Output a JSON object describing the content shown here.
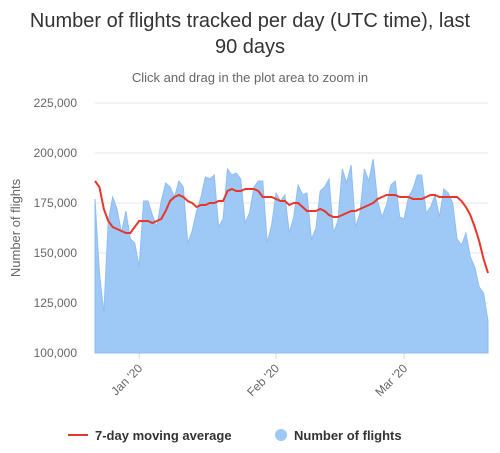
{
  "chart_data": {
    "type": "area",
    "title": "Number of flights tracked per day (UTC time), last 90 days",
    "subtitle": "Click and drag in the plot area to zoom in",
    "ylabel": "Number of flights",
    "xlabel": "",
    "ylim": [
      100000,
      225000
    ],
    "yticks": [
      "100,000",
      "125,000",
      "150,000",
      "175,000",
      "200,000",
      "225,000"
    ],
    "xticks": [
      {
        "label": "Jan '20",
        "date": "2020-01-01"
      },
      {
        "label": "Feb '20",
        "date": "2020-02-01"
      },
      {
        "label": "Mar '20",
        "date": "2020-03-01"
      }
    ],
    "x_start": "2019-12-22",
    "grid": true,
    "legend_position": "bottom",
    "series": [
      {
        "name": "Number of flights",
        "type": "area",
        "color": "#9ec8f5",
        "values": [
          177000,
          140000,
          120000,
          166000,
          178000,
          172000,
          160000,
          171000,
          157000,
          155000,
          143000,
          176000,
          176000,
          169000,
          163000,
          176000,
          185000,
          183000,
          178000,
          186000,
          183000,
          155000,
          161000,
          171000,
          178000,
          188000,
          187000,
          189000,
          163000,
          167000,
          192000,
          189000,
          190000,
          187000,
          165000,
          170000,
          183000,
          186000,
          186000,
          155000,
          164000,
          180000,
          176000,
          179000,
          160000,
          168000,
          184000,
          179000,
          180000,
          157000,
          162000,
          181000,
          183000,
          187000,
          160000,
          166000,
          192000,
          185000,
          194000,
          163000,
          170000,
          192000,
          186000,
          197000,
          176000,
          168000,
          174000,
          184000,
          186000,
          168000,
          167000,
          178000,
          182000,
          189000,
          189000,
          170000,
          173000,
          179000,
          168000,
          182000,
          180000,
          175000,
          157000,
          154000,
          160000,
          148000,
          143000,
          133000,
          130000,
          116000
        ],
        "units": "flights per day"
      },
      {
        "name": "7-day moving average",
        "type": "line",
        "color": "#e8362a",
        "values": [
          186000,
          183000,
          172000,
          166000,
          163000,
          162000,
          161000,
          160000,
          160000,
          163000,
          166000,
          166000,
          166000,
          165000,
          166000,
          167000,
          171000,
          176000,
          178000,
          179000,
          178000,
          176000,
          175000,
          173000,
          174000,
          174000,
          175000,
          175000,
          176000,
          176000,
          181000,
          182000,
          181000,
          181000,
          182000,
          182000,
          182000,
          181000,
          178000,
          178000,
          178000,
          177000,
          176000,
          176000,
          174000,
          175000,
          175000,
          173000,
          171000,
          171000,
          171000,
          172000,
          171000,
          169000,
          168000,
          168000,
          169000,
          170000,
          171000,
          171000,
          172000,
          173000,
          174000,
          175000,
          177000,
          178000,
          179000,
          179000,
          179000,
          178000,
          178000,
          178000,
          177000,
          177000,
          177000,
          178000,
          179000,
          179000,
          178000,
          178000,
          178000,
          178000,
          178000,
          176000,
          173000,
          169000,
          163000,
          156000,
          147000,
          140000
        ],
        "units": "flights per day"
      }
    ]
  }
}
